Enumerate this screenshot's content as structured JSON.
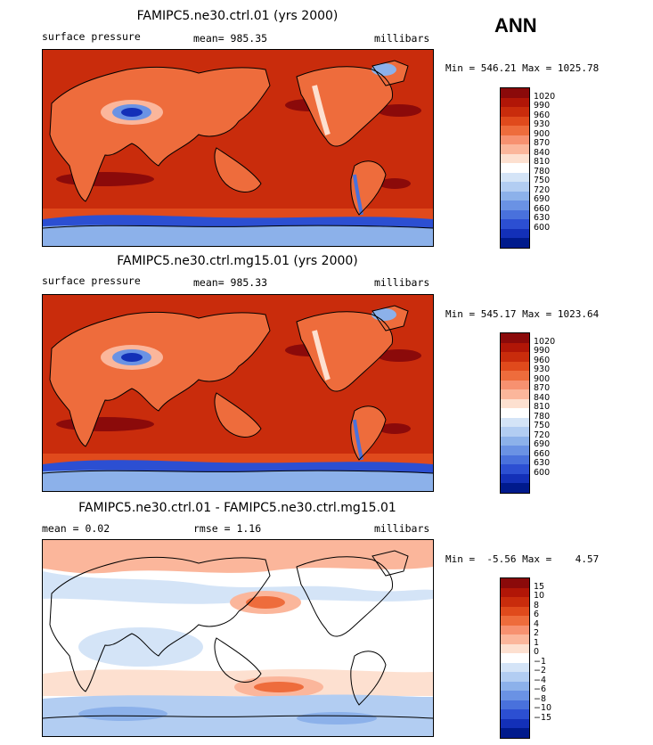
{
  "season_label": "ANN",
  "panels": [
    {
      "title": "FAMIPC5.ne30.ctrl.01 (yrs 2000)",
      "left_label": "surface pressure",
      "center_label": "mean= 985.35",
      "units": "millibars",
      "minmax": "Min = 546.21 Max = 1025.78",
      "colorbar": {
        "labels": [
          "1020",
          "990",
          "960",
          "930",
          "900",
          "870",
          "840",
          "810",
          "780",
          "750",
          "720",
          "690",
          "660",
          "630",
          "600"
        ],
        "colors": [
          "#8b0a0a",
          "#b11607",
          "#c92c0c",
          "#e04a1c",
          "#ee6c3c",
          "#f79170",
          "#fbb69b",
          "#fde0d0",
          "#ffffff",
          "#d4e4f7",
          "#b2cdf2",
          "#8cb1ea",
          "#6a92e4",
          "#4971dc",
          "#2c4fd2",
          "#1330b8",
          "#001a8c"
        ]
      }
    },
    {
      "title": "FAMIPC5.ne30.ctrl.mg15.01 (yrs 2000)",
      "left_label": "surface pressure",
      "center_label": "mean= 985.33",
      "units": "millibars",
      "minmax": "Min = 545.17 Max = 1023.64",
      "colorbar": {
        "labels": [
          "1020",
          "990",
          "960",
          "930",
          "900",
          "870",
          "840",
          "810",
          "780",
          "750",
          "720",
          "690",
          "660",
          "630",
          "600"
        ],
        "colors": [
          "#8b0a0a",
          "#b11607",
          "#c92c0c",
          "#e04a1c",
          "#ee6c3c",
          "#f79170",
          "#fbb69b",
          "#fde0d0",
          "#ffffff",
          "#d4e4f7",
          "#b2cdf2",
          "#8cb1ea",
          "#6a92e4",
          "#4971dc",
          "#2c4fd2",
          "#1330b8",
          "#001a8c"
        ]
      }
    },
    {
      "title": "FAMIPC5.ne30.ctrl.01 - FAMIPC5.ne30.ctrl.mg15.01",
      "left_label": "mean =    0.02",
      "center_label": "rmse =    1.16",
      "units": "millibars",
      "minmax": "Min =  -5.56 Max =    4.57",
      "colorbar": {
        "labels": [
          "15",
          "10",
          "8",
          "6",
          "4",
          "2",
          "1",
          "0",
          "−1",
          "−2",
          "−4",
          "−6",
          "−8",
          "−10",
          "−15"
        ],
        "colors": [
          "#8b0a0a",
          "#b11607",
          "#c92c0c",
          "#e04a1c",
          "#ee6c3c",
          "#f79170",
          "#fbb69b",
          "#fde0d0",
          "#ffffff",
          "#d4e4f7",
          "#b2cdf2",
          "#8cb1ea",
          "#6a92e4",
          "#4971dc",
          "#2c4fd2",
          "#1330b8",
          "#001a8c"
        ]
      }
    }
  ],
  "chart_data": [
    {
      "type": "heatmap",
      "title": "FAMIPC5.ne30.ctrl.01 (yrs 2000)",
      "variable": "surface pressure",
      "units": "millibars",
      "mean": 985.35,
      "min": 546.21,
      "max": 1025.78,
      "contour_levels": [
        600,
        630,
        660,
        690,
        720,
        750,
        780,
        810,
        840,
        870,
        900,
        930,
        960,
        990,
        1020
      ]
    },
    {
      "type": "heatmap",
      "title": "FAMIPC5.ne30.ctrl.mg15.01 (yrs 2000)",
      "variable": "surface pressure",
      "units": "millibars",
      "mean": 985.33,
      "min": 545.17,
      "max": 1023.64,
      "contour_levels": [
        600,
        630,
        660,
        690,
        720,
        750,
        780,
        810,
        840,
        870,
        900,
        930,
        960,
        990,
        1020
      ]
    },
    {
      "type": "heatmap",
      "title": "FAMIPC5.ne30.ctrl.01 - FAMIPC5.ne30.ctrl.mg15.01",
      "units": "millibars",
      "mean": 0.02,
      "rmse": 1.16,
      "min": -5.56,
      "max": 4.57,
      "contour_levels": [
        -15,
        -10,
        -8,
        -6,
        -4,
        -2,
        -1,
        0,
        1,
        2,
        4,
        6,
        8,
        10,
        15
      ]
    }
  ]
}
